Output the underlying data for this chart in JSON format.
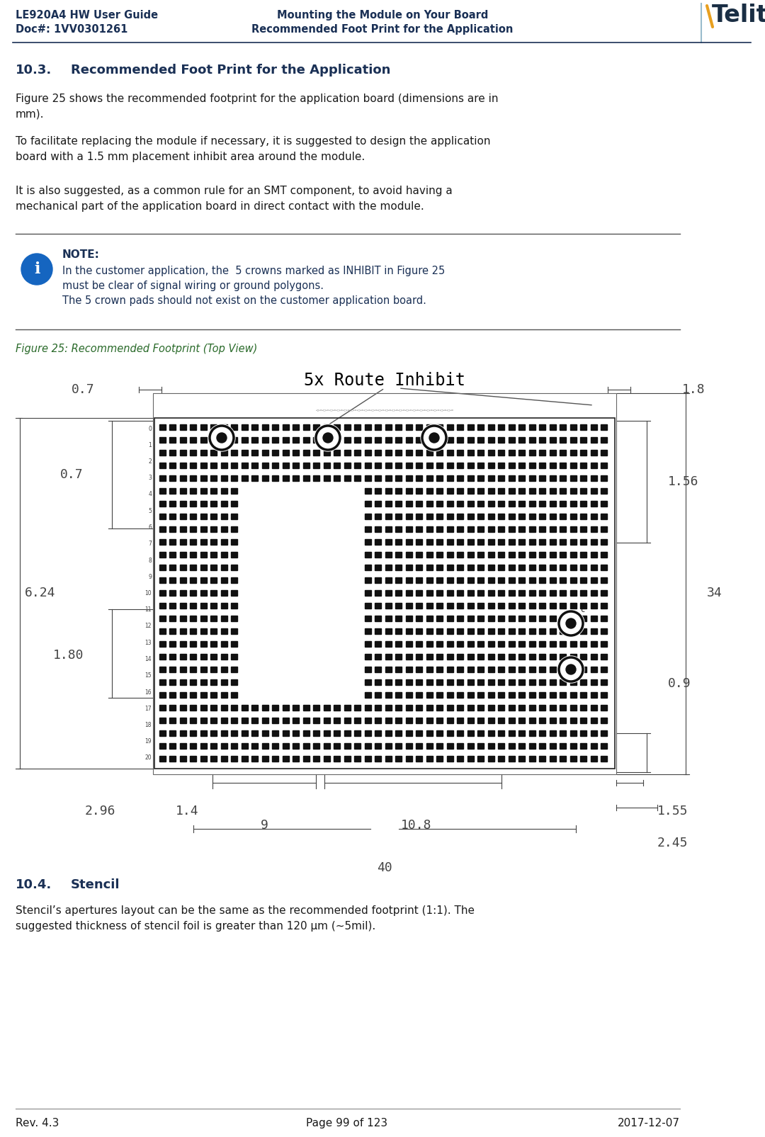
{
  "header_left_line1": "LE920A4 HW User Guide",
  "header_left_line2": "Doc#: 1VV0301261",
  "header_center_line1": "Mounting the Module on Your Board",
  "header_center_line2": "Recommended Foot Print for the Application",
  "para1": "Figure 25 shows the recommended footprint for the application board (dimensions are in\nmm).",
  "para2": "To facilitate replacing the module if necessary, it is suggested to design the application\nboard with a 1.5 mm placement inhibit area around the module.",
  "para3": "It is also suggested, as a common rule for an SMT component, to avoid having a\nmechanical part of the application board in direct contact with the module.",
  "note_title": "NOTE:",
  "note_text": "In the customer application, the  5 crowns marked as INHIBIT in Figure 25\nmust be clear of signal wiring or ground polygons.\nThe 5 crown pads should not exist on the customer application board.",
  "figure_caption": "Figure 25: Recommended Footprint (Top View)",
  "figure_title": "5x Route Inhibit",
  "dim_07_top": "0.7",
  "dim_18_top": "1.8",
  "dim_07_left": "0.7",
  "dim_156_right": "1.56",
  "dim_624_left": "6.24",
  "dim_34_right": "34",
  "dim_180_left": "1.80",
  "dim_09_right": "0.9",
  "dim_296_bot": "2.96",
  "dim_14_bot": "1.4",
  "dim_9_bot": "9",
  "dim_108_bot": "10.8",
  "dim_155_bot": "1.55",
  "dim_245_bot": "2.45",
  "dim_40_bot": "40",
  "section10_3": "10.3.",
  "section10_3_title": "Recommended Foot Print for the Application",
  "section10_4": "10.4.",
  "section10_4_title": "Stencil",
  "para4": "Stencil’s apertures layout can be the same as the recommended footprint (1:1). The\nsuggested thickness of stencil foil is greater than 120 µm (~5mil).",
  "footer_left": "Rev. 4.3",
  "footer_center": "Page 99 of 123",
  "footer_right": "2017-12-07",
  "bg_color": "#ffffff",
  "text_color": "#1a1a1a",
  "header_color": "#1a3055",
  "dim_color": "#444444",
  "note_color": "#1a3055",
  "caption_color": "#2a6a2a",
  "telit_orange": "#e8a020",
  "telit_dark": "#1a2e44",
  "divider_color": "#666666"
}
